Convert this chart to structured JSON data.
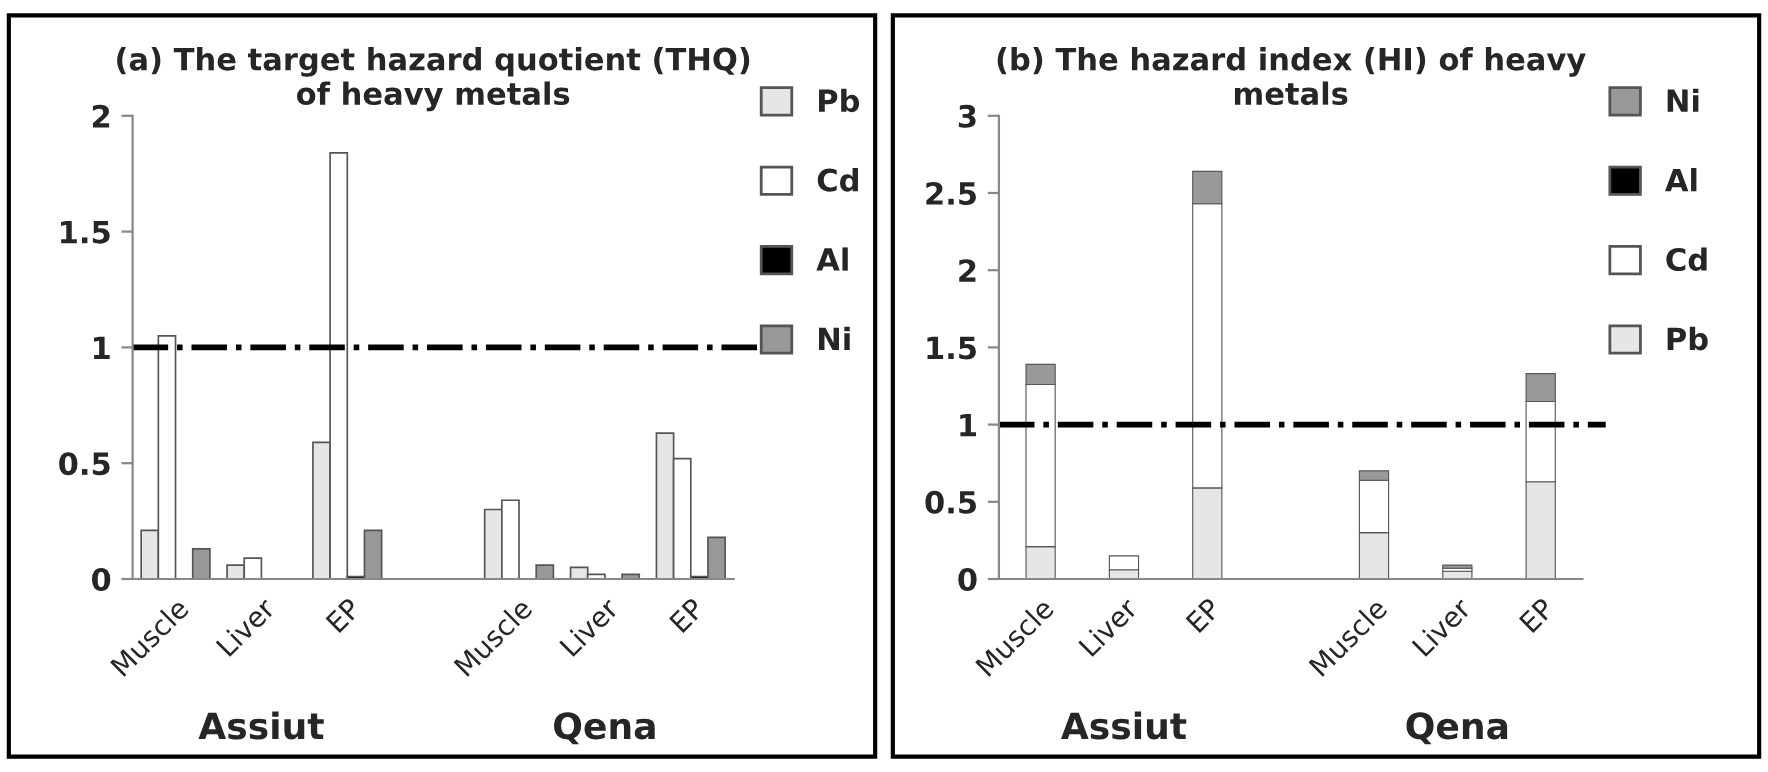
{
  "chart_data": [
    {
      "type": "bar",
      "title": "(a) The target hazard quotient (THQ)\nof heavy metals",
      "categories": [
        "Muscle",
        "Liver",
        "EP",
        null,
        "Muscle",
        "Liver",
        "EP"
      ],
      "series": [
        {
          "name": "Pb",
          "color": "#e6e6e6",
          "values": [
            0.21,
            0.06,
            0.59,
            null,
            0.3,
            0.05,
            0.63
          ]
        },
        {
          "name": "Cd",
          "color": "#ffffff",
          "values": [
            1.05,
            0.09,
            1.84,
            null,
            0.34,
            0.02,
            0.52
          ]
        },
        {
          "name": "Al",
          "color": "#000000",
          "values": [
            0,
            0,
            0.01,
            null,
            0,
            0,
            0.01
          ]
        },
        {
          "name": "Ni",
          "color": "#999999",
          "values": [
            0.13,
            0,
            0.21,
            null,
            0.06,
            0.02,
            0.18
          ]
        }
      ],
      "ylim": [
        0,
        2
      ],
      "yticks": [
        0,
        0.5,
        1,
        1.5,
        2
      ],
      "grid": false,
      "legend": "top right",
      "ref_lines": [
        {
          "axis": "y",
          "value": 1,
          "color": "#000000",
          "line_style": "dashdot"
        }
      ],
      "annotations": [
        "Assiut",
        "Qena"
      ]
    },
    {
      "type": "bar",
      "title": "(b) The hazard index (HI) of heavy\nmetals",
      "stacked": true,
      "categories": [
        "Muscle",
        "Liver",
        "EP",
        null,
        "Muscle",
        "Liver",
        "EP"
      ],
      "series": [
        {
          "name": "Pb",
          "color": "#e6e6e6",
          "values": [
            0.21,
            0.06,
            0.59,
            null,
            0.3,
            0.05,
            0.63
          ]
        },
        {
          "name": "Cd",
          "color": "#ffffff",
          "values": [
            1.05,
            0.09,
            1.84,
            null,
            0.34,
            0.02,
            0.52
          ]
        },
        {
          "name": "Al",
          "color": "#000000",
          "values": [
            0,
            0,
            0,
            null,
            0,
            0,
            0
          ]
        },
        {
          "name": "Ni",
          "color": "#999999",
          "values": [
            0.13,
            0,
            0.21,
            null,
            0.06,
            0.02,
            0.18
          ]
        }
      ],
      "ylim": [
        0,
        3
      ],
      "yticks": [
        0,
        0.5,
        1,
        1.5,
        2,
        2.5,
        3
      ],
      "grid": false,
      "legend": "top right",
      "ref_lines": [
        {
          "axis": "y",
          "value": 1,
          "color": "#000000",
          "line_style": "dashdot"
        }
      ],
      "annotations": [
        "Assiut",
        "Qena"
      ]
    }
  ]
}
